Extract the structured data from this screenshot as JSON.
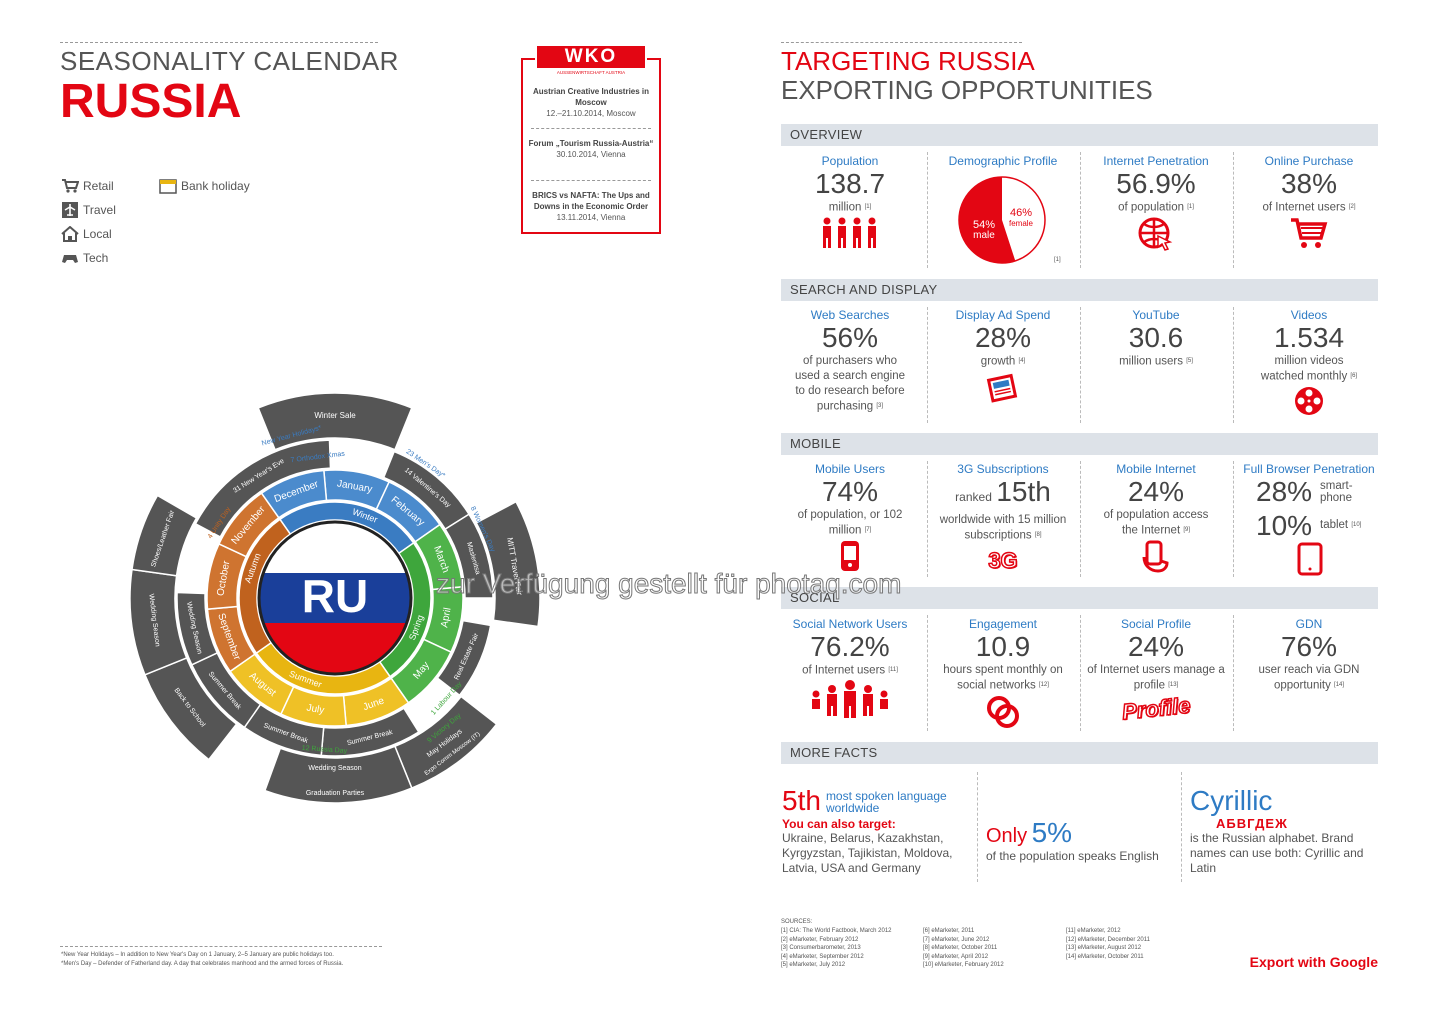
{
  "left": {
    "title_line1": "SEASONALITY CALENDAR",
    "title_line2": "RUSSIA",
    "legend": [
      {
        "icon": "cart-icon",
        "label": "Retail"
      },
      {
        "icon": "plane-icon",
        "label": "Travel"
      },
      {
        "icon": "house-icon",
        "label": "Local"
      },
      {
        "icon": "gamepad-icon",
        "label": "Tech"
      },
      {
        "icon": "calendar-icon",
        "label": "Bank holiday"
      }
    ],
    "center_code": "RU",
    "seasons": [
      "Winter",
      "Spring",
      "Summer",
      "Autumn"
    ],
    "months": [
      "January",
      "February",
      "March",
      "April",
      "May",
      "June",
      "July",
      "August",
      "September",
      "October",
      "November",
      "December"
    ],
    "events": {
      "winter_sale": "Winter Sale",
      "new_year_holidays": "New Year Holidays*",
      "orthodox_xmas": "7 Orthodox Xmas",
      "mens_day": "23 Men's Day*",
      "valentines": "14 Valentine's Day",
      "womens_day": "8 Women's Day",
      "maslenitsa": "Maslenitsa",
      "mitt": "MITT Travel Fair",
      "real_estate": "Real Estate Fair",
      "labour_day": "1 Labour Day",
      "victory_day": "9 Victory Day",
      "may_holidays": "May Holidays",
      "expo_comm": "Expo Comm Moscow (IT)",
      "russia_day": "12 Russia Day",
      "summer_break_june": "Summer Break",
      "summer_break_july": "Summer Break",
      "summer_break_aug": "Summer Break",
      "wedding_season_summer": "Wedding Season",
      "graduation": "Graduation Parties",
      "back_to_school": "Back to School",
      "wedding_season_sep": "Wedding Season",
      "wedding_season_oct": "Wedding Season",
      "shoes_fair": "Shoes/Leather Fair",
      "unity_day": "4 Unity Day",
      "new_years_eve": "31 New Year's Eve"
    },
    "footnotes": [
      "*New Year Holidays – In addition to New Year's Day on 1 January, 2–5 January are public holidays too.",
      "*Men's Day – Defender of Fatherland day. A day that celebrates manhood and the armed forces of Russia."
    ]
  },
  "wko": {
    "logo": "WKO",
    "logo_sub": "AUSSENWIRTSCHAFT AUSTRIA",
    "events": [
      {
        "title": "Austrian Creative Industries in Moscow",
        "date": "12.–21.10.2014, Moscow"
      },
      {
        "title": "Forum „Tourism Russia-Austria“",
        "date": "30.10.2014, Vienna"
      },
      {
        "title": "BRICS vs NAFTA: The Ups and Downs in the Economic Order",
        "date": "13.11.2014, Vienna"
      }
    ]
  },
  "right": {
    "title_line1": "TARGETING RUSSIA",
    "title_line2": "EXPORTING OPPORTUNITIES",
    "sections": {
      "overview": "OVERVIEW",
      "search": "SEARCH AND DISPLAY",
      "mobile": "MOBILE",
      "social": "SOCIAL",
      "more": "MORE FACTS"
    },
    "overview": {
      "population": {
        "label": "Population",
        "value": "138.7",
        "sub": "million",
        "ref": "[1]"
      },
      "demographic": {
        "label": "Demographic Profile",
        "female_pct": "46%",
        "female": "female",
        "male_pct": "54%",
        "male": "male",
        "ref": "[1]"
      },
      "internet": {
        "label": "Internet Penetration",
        "value": "56.9%",
        "sub": "of population",
        "ref": "[1]"
      },
      "purchase": {
        "label": "Online Purchase",
        "value": "38%",
        "sub": "of Internet users",
        "ref": "[2]"
      }
    },
    "search": {
      "web": {
        "label": "Web Searches",
        "value": "56%",
        "sub": "of purchasers who used a search engine to do research before purchasing",
        "ref": "[3]"
      },
      "display": {
        "label": "Display Ad Spend",
        "value": "28%",
        "sub": "growth",
        "ref": "[4]"
      },
      "youtube": {
        "label": "YouTube",
        "value": "30.6",
        "sub": "million users",
        "ref": "[5]"
      },
      "videos": {
        "label": "Videos",
        "value": "1.534",
        "sub": "million videos watched monthly",
        "ref": "[6]"
      }
    },
    "mobile": {
      "users": {
        "label": "Mobile Users",
        "value": "74%",
        "sub": "of population, or 102 million",
        "ref": "[7]"
      },
      "3g": {
        "label": "3G Subscriptions",
        "ranked": "ranked",
        "value": "15th",
        "sub": "worldwide with 15 million subscriptions",
        "ref": "[8]",
        "icon_text": "3G"
      },
      "internet": {
        "label": "Mobile Internet",
        "value": "24%",
        "sub": "of population access the Internet",
        "ref": "[9]"
      },
      "browser": {
        "label": "Full Browser Penetration",
        "value1": "28%",
        "sub1": "smart-phone",
        "value2": "10%",
        "sub2": "tablet",
        "ref": "[10]"
      }
    },
    "social": {
      "network": {
        "label": "Social Network Users",
        "value": "76.2%",
        "sub": "of Internet users",
        "ref": "[11]"
      },
      "engagement": {
        "label": "Engagement",
        "value": "10.9",
        "sub": "hours spent monthly on social networks",
        "ref": "[12]"
      },
      "profile": {
        "label": "Social Profile",
        "value": "24%",
        "sub": "of Internet users manage a profile",
        "ref": "[13]",
        "icon_text": "Profile"
      },
      "gdn": {
        "label": "GDN",
        "value": "76%",
        "sub": "user reach via GDN opportunity",
        "ref": "[14]"
      }
    },
    "more": {
      "fifth": "5th",
      "fifth_sub": "most spoken language worldwide",
      "target_label": "You can also target:",
      "target_countries": "Ukraine, Belarus, Kazakhstan, Kyrgyzstan, Tajikistan, Moldova, Latvia, USA and Germany",
      "only": "Only",
      "only_pct": "5%",
      "only_sub": "of the population speaks English",
      "cyrillic": "Cyrillic",
      "cyrillic_letters": "АБВГДЕЖ",
      "cyrillic_sub": "is the Russian alphabet. Brand names can use both: Cyrillic and Latin"
    },
    "sources_label": "SOURCES:",
    "sources": [
      "[1] CIA: The World Factbook, March 2012",
      "[2] eMarketer, February 2012",
      "[3] Consumerbarometer, 2013",
      "[4] eMarketer, September 2012",
      "[5] eMarketer, July 2012",
      "[6] eMarketer, 2011",
      "[7] eMarketer, June 2012",
      "[8] eMarketer, October 2011",
      "[9] eMarketer, April 2012",
      "[10] eMarketer, February 2012",
      "[11] eMarketer, 2012",
      "[12] eMarketer, December 2011",
      "[13] eMarketer, August 2012",
      "[14] eMarketer, October 2011"
    ],
    "export_google": "Export with Google"
  },
  "watermark": "zur Verfügung gestellt für photaq.com",
  "colors": {
    "red": "#e30613",
    "blue": "#2e7bc4",
    "dark": "#555555",
    "winter": "#3a7cc2",
    "spring": "#3ea63c",
    "summer": "#e8b511",
    "autumn": "#c0621e",
    "ring_gray": "#555555"
  }
}
